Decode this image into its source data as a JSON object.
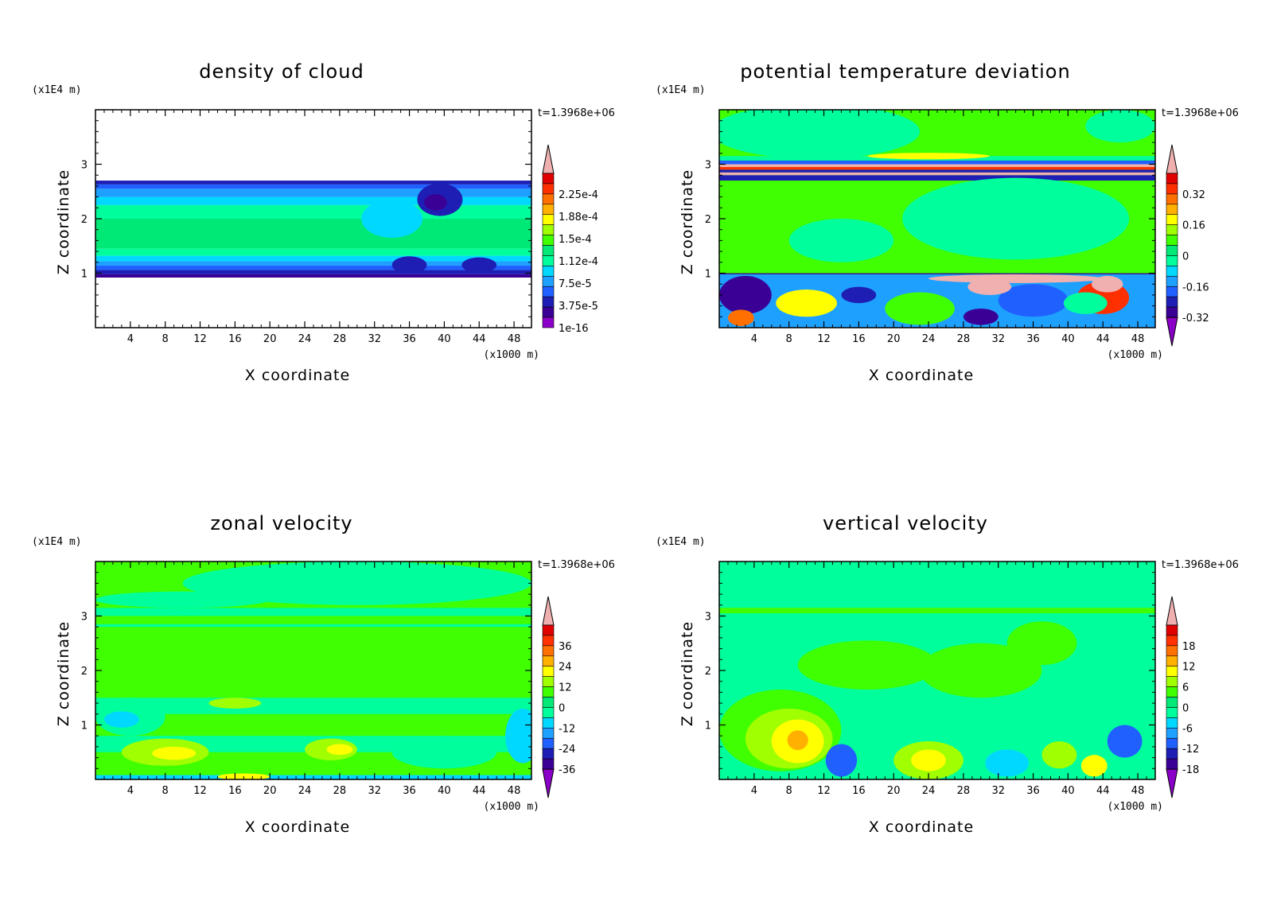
{
  "palette": [
    "#8a00c8",
    "#3a0096",
    "#1e1eb4",
    "#2060ff",
    "#1ea0ff",
    "#00d8ff",
    "#00ff9c",
    "#00e876",
    "#40ff00",
    "#a0ff00",
    "#ffff00",
    "#ffb000",
    "#ff7000",
    "#ff3000",
    "#e00000",
    "#f0b0b0"
  ],
  "chart_data": [
    {
      "type": "heatmap",
      "title": "density of cloud",
      "time_label": "t=1.3968e+06",
      "xlabel": "X coordinate",
      "ylabel": "Z coordinate",
      "x_unit": "(x1000 m)",
      "y_unit": "(x1E4 m)",
      "x_ticks": [
        4,
        8,
        12,
        16,
        20,
        24,
        28,
        32,
        36,
        40,
        44,
        48
      ],
      "y_ticks": [
        1,
        2,
        3
      ],
      "xlim": [
        0,
        50
      ],
      "ylim": [
        0,
        4
      ],
      "colorbar_labels": [
        "2.25e-4",
        "1.88e-4",
        "1.5e-4",
        "1.12e-4",
        "7.5e-5",
        "3.75e-5",
        "1e-16"
      ],
      "colorbar_min_arrow": false,
      "background": "#ffffff",
      "bands": [
        {
          "y0": 0.92,
          "y1": 0.98,
          "color": "#3a0096"
        },
        {
          "y0": 0.98,
          "y1": 1.06,
          "color": "#1e1eb4"
        },
        {
          "y0": 1.06,
          "y1": 1.14,
          "color": "#2060ff"
        },
        {
          "y0": 1.14,
          "y1": 1.22,
          "color": "#1ea0ff"
        },
        {
          "y0": 1.22,
          "y1": 1.32,
          "color": "#00d8ff"
        },
        {
          "y0": 1.32,
          "y1": 1.45,
          "color": "#00ff9c"
        },
        {
          "y0": 1.45,
          "y1": 2.0,
          "color": "#00e876"
        },
        {
          "y0": 2.0,
          "y1": 2.25,
          "color": "#00ff9c"
        },
        {
          "y0": 2.25,
          "y1": 2.4,
          "color": "#00d8ff"
        },
        {
          "y0": 2.4,
          "y1": 2.55,
          "color": "#1ea0ff"
        },
        {
          "y0": 2.55,
          "y1": 2.63,
          "color": "#2060ff"
        },
        {
          "y0": 2.63,
          "y1": 2.7,
          "color": "#1e1eb4"
        }
      ],
      "blobs": [
        {
          "x": 39.5,
          "y": 2.35,
          "rx": 2.6,
          "ry": 0.3,
          "color": "#1e1eb4"
        },
        {
          "x": 39.0,
          "y": 2.3,
          "rx": 1.3,
          "ry": 0.15,
          "color": "#3a0096"
        },
        {
          "x": 34,
          "y": 2.0,
          "rx": 3.5,
          "ry": 0.35,
          "color": "#00d8ff"
        },
        {
          "x": 36,
          "y": 1.15,
          "rx": 2.0,
          "ry": 0.16,
          "color": "#1e1eb4"
        },
        {
          "x": 44,
          "y": 1.15,
          "rx": 2.0,
          "ry": 0.14,
          "color": "#1e1eb4"
        }
      ]
    },
    {
      "type": "heatmap",
      "title": "potential temperature deviation",
      "time_label": "t=1.3968e+06",
      "xlabel": "X coordinate",
      "ylabel": "Z coordinate",
      "x_unit": "(x1000 m)",
      "y_unit": "(x1E4 m)",
      "x_ticks": [
        4,
        8,
        12,
        16,
        20,
        24,
        28,
        32,
        36,
        40,
        44,
        48
      ],
      "y_ticks": [
        1,
        2,
        3
      ],
      "xlim": [
        0,
        50
      ],
      "ylim": [
        0,
        4
      ],
      "colorbar_labels": [
        "0.32",
        "0.16",
        "0",
        "-0.16",
        "-0.32"
      ],
      "colorbar_min_arrow": true,
      "background": "#40ff00",
      "bands": [
        {
          "y0": 0.0,
          "y1": 0.98,
          "color": "#1ea0ff"
        },
        {
          "y0": 0.98,
          "y1": 1.0,
          "color": "#3a0096"
        },
        {
          "y0": 2.7,
          "y1": 2.8,
          "color": "#1e1eb4"
        },
        {
          "y0": 2.8,
          "y1": 2.85,
          "color": "#f0b0b0"
        },
        {
          "y0": 2.85,
          "y1": 2.9,
          "color": "#1e1eb4"
        },
        {
          "y0": 2.9,
          "y1": 2.95,
          "color": "#ff3000"
        },
        {
          "y0": 2.95,
          "y1": 3.0,
          "color": "#f0b0b0"
        },
        {
          "y0": 3.0,
          "y1": 3.07,
          "color": "#2060ff"
        },
        {
          "y0": 3.07,
          "y1": 3.15,
          "color": "#00ff9c"
        }
      ],
      "blobs": [
        {
          "x": 11,
          "y": 3.6,
          "rx": 12,
          "ry": 0.5,
          "color": "#00ff9c"
        },
        {
          "x": 46,
          "y": 3.7,
          "rx": 4,
          "ry": 0.3,
          "color": "#00ff9c"
        },
        {
          "x": 24,
          "y": 3.15,
          "rx": 7,
          "ry": 0.06,
          "color": "#ffff00"
        },
        {
          "x": 34,
          "y": 2.0,
          "rx": 13,
          "ry": 0.75,
          "color": "#00ff9c"
        },
        {
          "x": 14,
          "y": 1.6,
          "rx": 6,
          "ry": 0.4,
          "color": "#00ff9c"
        },
        {
          "x": 3,
          "y": 0.6,
          "rx": 3,
          "ry": 0.35,
          "color": "#3a0096"
        },
        {
          "x": 10,
          "y": 0.45,
          "rx": 3.5,
          "ry": 0.25,
          "color": "#ffff00"
        },
        {
          "x": 23,
          "y": 0.35,
          "rx": 4,
          "ry": 0.3,
          "color": "#40ff00"
        },
        {
          "x": 36,
          "y": 0.5,
          "rx": 4,
          "ry": 0.3,
          "color": "#2060ff"
        },
        {
          "x": 44,
          "y": 0.55,
          "rx": 3,
          "ry": 0.3,
          "color": "#ff3000"
        },
        {
          "x": 42,
          "y": 0.45,
          "rx": 2.5,
          "ry": 0.2,
          "color": "#00ff9c"
        },
        {
          "x": 2.5,
          "y": 0.18,
          "rx": 1.5,
          "ry": 0.15,
          "color": "#ff7000"
        },
        {
          "x": 16,
          "y": 0.6,
          "rx": 2,
          "ry": 0.15,
          "color": "#1e1eb4"
        },
        {
          "x": 30,
          "y": 0.2,
          "rx": 2,
          "ry": 0.15,
          "color": "#3a0096"
        },
        {
          "x": 34,
          "y": 0.9,
          "rx": 10,
          "ry": 0.08,
          "color": "#f0b0b0"
        },
        {
          "x": 31,
          "y": 0.75,
          "rx": 2.5,
          "ry": 0.15,
          "color": "#f0b0b0"
        },
        {
          "x": 44.5,
          "y": 0.8,
          "rx": 1.8,
          "ry": 0.15,
          "color": "#f0b0b0"
        }
      ]
    },
    {
      "type": "heatmap",
      "title": "zonal velocity",
      "time_label": "t=1.3968e+06",
      "xlabel": "X coordinate",
      "ylabel": "Z coordinate",
      "x_unit": "(x1000 m)",
      "y_unit": "(x1E4 m)",
      "x_ticks": [
        4,
        8,
        12,
        16,
        20,
        24,
        28,
        32,
        36,
        40,
        44,
        48
      ],
      "y_ticks": [
        1,
        2,
        3
      ],
      "xlim": [
        0,
        50
      ],
      "ylim": [
        0,
        4
      ],
      "colorbar_labels": [
        "36",
        "24",
        "12",
        "0",
        "-12",
        "-24",
        "-36"
      ],
      "colorbar_min_arrow": true,
      "background": "#40ff00",
      "bands": [
        {
          "y0": 3.0,
          "y1": 3.15,
          "color": "#00ff9c"
        },
        {
          "y0": 2.8,
          "y1": 2.85,
          "color": "#00ff9c"
        },
        {
          "y0": 1.2,
          "y1": 1.5,
          "color": "#00ff9c"
        },
        {
          "y0": 0.5,
          "y1": 0.8,
          "color": "#00ff9c"
        },
        {
          "y0": 0.0,
          "y1": 0.08,
          "color": "#00d8ff"
        }
      ],
      "blobs": [
        {
          "x": 30,
          "y": 3.6,
          "rx": 20,
          "ry": 0.4,
          "color": "#00ff9c"
        },
        {
          "x": 10,
          "y": 3.3,
          "rx": 10,
          "ry": 0.15,
          "color": "#00ff9c"
        },
        {
          "x": 4,
          "y": 1.15,
          "rx": 4,
          "ry": 0.35,
          "color": "#00ff9c"
        },
        {
          "x": 3,
          "y": 1.1,
          "rx": 2,
          "ry": 0.15,
          "color": "#00d8ff"
        },
        {
          "x": 16,
          "y": 1.4,
          "rx": 3,
          "ry": 0.1,
          "color": "#a0ff00"
        },
        {
          "x": 8,
          "y": 0.5,
          "rx": 5,
          "ry": 0.25,
          "color": "#a0ff00"
        },
        {
          "x": 9,
          "y": 0.48,
          "rx": 2.5,
          "ry": 0.12,
          "color": "#ffff00"
        },
        {
          "x": 27,
          "y": 0.55,
          "rx": 3,
          "ry": 0.2,
          "color": "#a0ff00"
        },
        {
          "x": 28,
          "y": 0.55,
          "rx": 1.5,
          "ry": 0.1,
          "color": "#ffff00"
        },
        {
          "x": 40,
          "y": 0.5,
          "rx": 6,
          "ry": 0.3,
          "color": "#00ff9c"
        },
        {
          "x": 49,
          "y": 0.8,
          "rx": 2,
          "ry": 0.5,
          "color": "#00d8ff"
        },
        {
          "x": 17,
          "y": 0.05,
          "rx": 3,
          "ry": 0.06,
          "color": "#ffff00"
        }
      ]
    },
    {
      "type": "heatmap",
      "title": "vertical velocity",
      "time_label": "t=1.3968e+06",
      "xlabel": "X coordinate",
      "ylabel": "Z coordinate",
      "x_unit": "(x1000 m)",
      "y_unit": "(x1E4 m)",
      "x_ticks": [
        4,
        8,
        12,
        16,
        20,
        24,
        28,
        32,
        36,
        40,
        44,
        48
      ],
      "y_ticks": [
        1,
        2,
        3
      ],
      "xlim": [
        0,
        50
      ],
      "ylim": [
        0,
        4
      ],
      "colorbar_labels": [
        "18",
        "12",
        "6",
        "0",
        "-6",
        "-12",
        "-18"
      ],
      "colorbar_min_arrow": true,
      "background": "#00ff9c",
      "bands": [
        {
          "y0": 3.05,
          "y1": 3.15,
          "color": "#40ff00"
        }
      ],
      "blobs": [
        {
          "x": 17,
          "y": 2.1,
          "rx": 8,
          "ry": 0.45,
          "color": "#40ff00"
        },
        {
          "x": 30,
          "y": 2.0,
          "rx": 7,
          "ry": 0.5,
          "color": "#40ff00"
        },
        {
          "x": 37,
          "y": 2.5,
          "rx": 4,
          "ry": 0.4,
          "color": "#40ff00"
        },
        {
          "x": 7,
          "y": 0.9,
          "rx": 7,
          "ry": 0.75,
          "color": "#40ff00"
        },
        {
          "x": 8,
          "y": 0.75,
          "rx": 5,
          "ry": 0.55,
          "color": "#a0ff00"
        },
        {
          "x": 9,
          "y": 0.7,
          "rx": 3,
          "ry": 0.4,
          "color": "#ffff00"
        },
        {
          "x": 9,
          "y": 0.72,
          "rx": 1.2,
          "ry": 0.18,
          "color": "#ffb000"
        },
        {
          "x": 24,
          "y": 0.35,
          "rx": 4,
          "ry": 0.35,
          "color": "#a0ff00"
        },
        {
          "x": 24,
          "y": 0.35,
          "rx": 2,
          "ry": 0.2,
          "color": "#ffff00"
        },
        {
          "x": 14,
          "y": 0.35,
          "rx": 1.8,
          "ry": 0.3,
          "color": "#2060ff"
        },
        {
          "x": 33,
          "y": 0.3,
          "rx": 2.5,
          "ry": 0.25,
          "color": "#00d8ff"
        },
        {
          "x": 39,
          "y": 0.45,
          "rx": 2,
          "ry": 0.25,
          "color": "#a0ff00"
        },
        {
          "x": 46.5,
          "y": 0.7,
          "rx": 2,
          "ry": 0.3,
          "color": "#2060ff"
        },
        {
          "x": 43,
          "y": 0.25,
          "rx": 1.5,
          "ry": 0.2,
          "color": "#ffff00"
        }
      ]
    }
  ]
}
